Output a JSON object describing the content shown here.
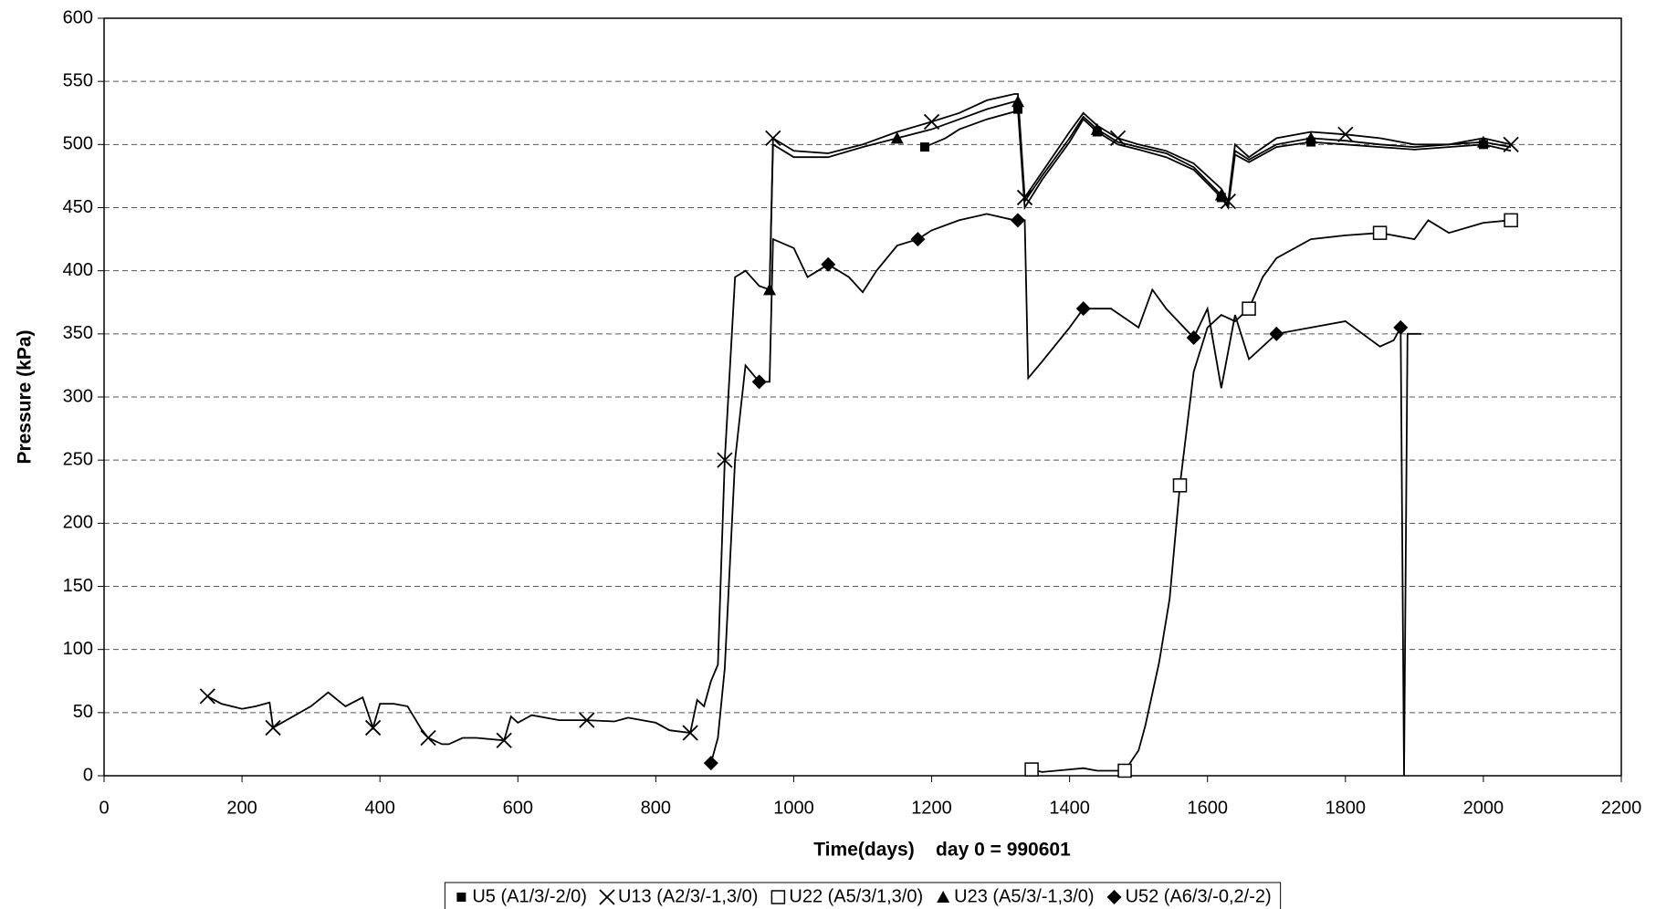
{
  "chart_data": {
    "type": "line",
    "xlabel": "Time(days)    day 0 = 990601",
    "ylabel": "Pressure (kPa)",
    "xlim": [
      0,
      2200
    ],
    "xticks": [
      0,
      200,
      400,
      600,
      800,
      1000,
      1200,
      1400,
      1600,
      1800,
      2000,
      2200
    ],
    "ylim": [
      0,
      600
    ],
    "yticks": [
      0,
      50,
      100,
      150,
      200,
      250,
      300,
      350,
      400,
      450,
      500,
      550,
      600
    ],
    "grid": true,
    "legend": "bottom",
    "series": [
      {
        "name": "U5 (A1/3/-2/0)",
        "color": "#000000",
        "marker": "square-filled",
        "x": [
          1190,
          1220,
          1240,
          1280,
          1320,
          1325,
          1335,
          1360,
          1400,
          1420,
          1440,
          1470,
          1500,
          1540,
          1580,
          1620,
          1630,
          1640,
          1660,
          1700,
          1750,
          1800,
          1850,
          1900,
          1950,
          2000,
          2040
        ],
        "values": [
          498,
          505,
          512,
          520,
          526,
          528,
          450,
          472,
          502,
          520,
          510,
          500,
          496,
          490,
          480,
          458,
          450,
          492,
          486,
          498,
          502,
          500,
          498,
          496,
          498,
          500,
          495
        ]
      },
      {
        "name": "U13 (A2/3/-1,3/0)",
        "color": "#000000",
        "marker": "cross",
        "x": [
          150,
          170,
          200,
          220,
          240,
          245,
          300,
          325,
          350,
          375,
          390,
          400,
          420,
          440,
          460,
          470,
          490,
          500,
          520,
          540,
          580,
          590,
          600,
          620,
          660,
          700,
          740,
          760,
          800,
          820,
          850,
          860,
          870,
          880,
          890,
          900,
          915,
          930,
          950,
          965,
          970,
          1000,
          1050,
          1100,
          1150,
          1200,
          1240,
          1280,
          1320,
          1325,
          1335,
          1360,
          1400,
          1420,
          1440,
          1470,
          1500,
          1540,
          1580,
          1620,
          1630,
          1640,
          1660,
          1700,
          1750,
          1800,
          1850,
          1900,
          1950,
          2000,
          2040
        ],
        "values": [
          63,
          57,
          53,
          55,
          58,
          38,
          55,
          66,
          55,
          62,
          38,
          57,
          57,
          55,
          37,
          30,
          25,
          25,
          30,
          30,
          28,
          47,
          42,
          48,
          44,
          44,
          43,
          46,
          42,
          36,
          34,
          60,
          55,
          75,
          88,
          250,
          395,
          400,
          388,
          385,
          505,
          495,
          493,
          500,
          510,
          518,
          525,
          535,
          540,
          540,
          458,
          478,
          510,
          525,
          515,
          505,
          500,
          495,
          485,
          465,
          455,
          500,
          490,
          505,
          510,
          508,
          505,
          500,
          500,
          505,
          500
        ]
      },
      {
        "name": "U22 (A5/3/1,3/0)",
        "color": "#000000",
        "marker": "square-open",
        "x": [
          1345,
          1360,
          1400,
          1420,
          1440,
          1480,
          1500,
          1510,
          1530,
          1545,
          1560,
          1580,
          1600,
          1620,
          1640,
          1660,
          1680,
          1700,
          1750,
          1800,
          1850,
          1900,
          1920,
          1950,
          2000,
          2040
        ],
        "values": [
          5,
          3,
          5,
          6,
          4,
          4,
          20,
          40,
          90,
          140,
          230,
          320,
          355,
          365,
          360,
          370,
          395,
          410,
          425,
          428,
          430,
          425,
          440,
          430,
          438,
          440
        ]
      },
      {
        "name": "U23 (A5/3/-1,3/0)",
        "color": "#000000",
        "marker": "triangle",
        "x": [
          965,
          970,
          1000,
          1050,
          1100,
          1150,
          1200,
          1240,
          1280,
          1320,
          1325,
          1335,
          1360,
          1400,
          1420,
          1440,
          1470,
          1500,
          1540,
          1580,
          1620,
          1630,
          1640,
          1660,
          1700,
          1750,
          1800,
          1850,
          1900,
          1950,
          2000,
          2040
        ],
        "values": [
          385,
          500,
          490,
          490,
          498,
          505,
          512,
          520,
          528,
          534,
          534,
          455,
          475,
          505,
          522,
          512,
          502,
          498,
          493,
          482,
          460,
          452,
          495,
          488,
          500,
          505,
          503,
          500,
          498,
          500,
          502,
          498
        ]
      },
      {
        "name": "U52 (A6/3/-0,2/-2)",
        "color": "#000000",
        "marker": "diamond",
        "x": [
          880,
          890,
          900,
          915,
          930,
          950,
          965,
          970,
          1000,
          1020,
          1050,
          1080,
          1100,
          1120,
          1150,
          1180,
          1200,
          1240,
          1280,
          1320,
          1325,
          1335,
          1340,
          1360,
          1400,
          1420,
          1460,
          1500,
          1520,
          1540,
          1580,
          1600,
          1620,
          1640,
          1660,
          1700,
          1750,
          1800,
          1850,
          1870,
          1880,
          1885,
          1890,
          1910
        ],
        "values": [
          10,
          30,
          85,
          250,
          325,
          312,
          312,
          425,
          418,
          395,
          405,
          395,
          383,
          400,
          420,
          425,
          432,
          440,
          445,
          440,
          440,
          440,
          315,
          328,
          355,
          370,
          370,
          355,
          385,
          370,
          347,
          370,
          307,
          365,
          330,
          350,
          355,
          360,
          340,
          345,
          355,
          0,
          350,
          350
        ]
      }
    ]
  }
}
